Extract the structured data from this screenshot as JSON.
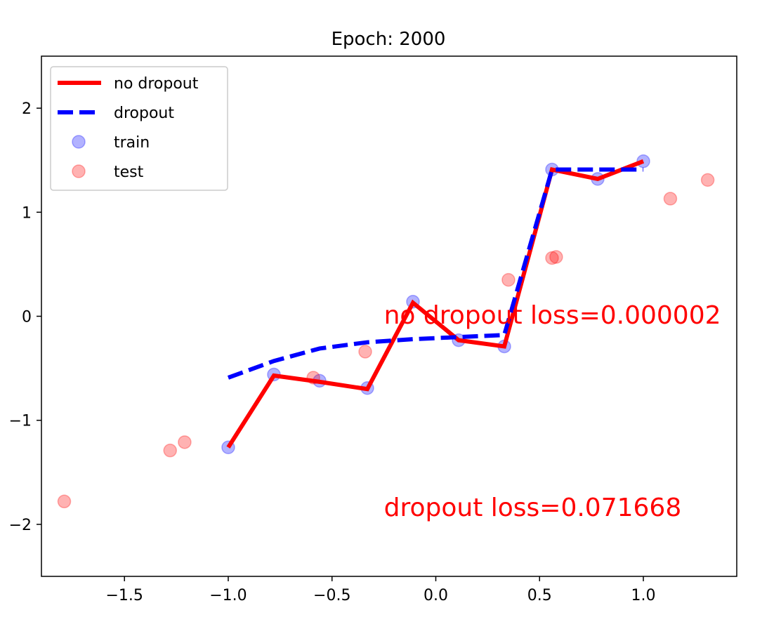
{
  "chart_data": {
    "type": "line",
    "title": "Epoch: 2000",
    "xlabel": "",
    "ylabel": "",
    "xlim": [
      -1.9,
      1.45
    ],
    "ylim": [
      -2.5,
      2.5
    ],
    "xticks": [
      -1.5,
      -1.0,
      -0.5,
      0.0,
      0.5,
      1.0
    ],
    "xtick_labels": [
      "−1.5",
      "−1.0",
      "−0.5",
      "0.0",
      "0.5",
      "1.0"
    ],
    "yticks": [
      -2,
      -1,
      0,
      1,
      2
    ],
    "ytick_labels": [
      "−2",
      "−1",
      "0",
      "1",
      "2"
    ],
    "grid": false,
    "legend_position": "upper-left",
    "series": [
      {
        "name": "no dropout",
        "kind": "line",
        "color": "#ff0000",
        "style": "solid",
        "x": [
          -1.0,
          -0.78,
          -0.56,
          -0.33,
          -0.11,
          0.11,
          0.33,
          0.56,
          0.78,
          1.0
        ],
        "y": [
          -1.26,
          -0.57,
          -0.63,
          -0.7,
          0.13,
          -0.23,
          -0.29,
          1.41,
          1.32,
          1.49
        ]
      },
      {
        "name": "dropout",
        "kind": "line",
        "color": "#0000ff",
        "style": "dashed",
        "x": [
          -1.0,
          -0.78,
          -0.56,
          -0.33,
          -0.11,
          0.11,
          0.33,
          0.56,
          0.78,
          1.0
        ],
        "y": [
          -0.59,
          -0.43,
          -0.31,
          -0.25,
          -0.22,
          -0.2,
          -0.18,
          1.41,
          1.41,
          1.41
        ]
      },
      {
        "name": "train",
        "kind": "scatter",
        "color": "#0000ff",
        "x": [
          -1.0,
          -0.78,
          -0.56,
          -0.33,
          -0.11,
          0.11,
          0.33,
          0.56,
          0.78,
          1.0
        ],
        "y": [
          -1.26,
          -0.56,
          -0.62,
          -0.69,
          0.14,
          -0.23,
          -0.29,
          1.41,
          1.32,
          1.49
        ]
      },
      {
        "name": "test",
        "kind": "scatter",
        "color": "#ff0000",
        "x": [
          -1.79,
          -1.28,
          -1.21,
          -0.59,
          -0.34,
          0.35,
          0.56,
          0.58,
          1.13,
          1.31
        ],
        "y": [
          -1.78,
          -1.29,
          -1.21,
          -0.59,
          -0.34,
          0.35,
          0.56,
          0.57,
          1.13,
          1.31
        ]
      }
    ],
    "annotations": [
      {
        "text": "no dropout loss=0.000002",
        "x": -0.25,
        "y": -0.07,
        "color": "#ff0000"
      },
      {
        "text": "dropout loss=0.071668",
        "x": -0.25,
        "y": -1.92,
        "color": "#ff0000"
      }
    ]
  }
}
